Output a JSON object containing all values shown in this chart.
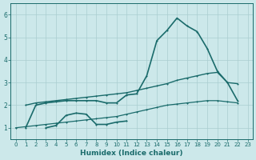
{
  "xlabel": "Humidex (Indice chaleur)",
  "xlim": [
    -0.5,
    23.5
  ],
  "ylim": [
    0.5,
    6.5
  ],
  "xticks": [
    0,
    1,
    2,
    3,
    4,
    5,
    6,
    7,
    8,
    9,
    10,
    11,
    12,
    13,
    14,
    15,
    16,
    17,
    18,
    19,
    20,
    21,
    22,
    23
  ],
  "yticks": [
    1,
    2,
    3,
    4,
    5,
    6
  ],
  "bg_color": "#cce8ea",
  "grid_color": "#aacdd0",
  "line_color": "#1a6b6b",
  "lines": [
    {
      "x": [
        1,
        2,
        3,
        4,
        5,
        6,
        7,
        8,
        9,
        10,
        11,
        12,
        13,
        14,
        15,
        16,
        17,
        18,
        19,
        20,
        21,
        22
      ],
      "y": [
        1.0,
        2.0,
        2.1,
        2.15,
        2.2,
        2.2,
        2.2,
        2.2,
        2.1,
        2.1,
        2.45,
        2.5,
        3.3,
        4.85,
        5.3,
        5.85,
        5.5,
        5.25,
        4.5,
        3.5,
        3.0,
        2.2
      ],
      "linewidth": 1.2,
      "markersize": 2.0
    },
    {
      "x": [
        3,
        4,
        5,
        6,
        7,
        8,
        9,
        10,
        11
      ],
      "y": [
        1.0,
        1.1,
        1.55,
        1.65,
        1.6,
        1.15,
        1.15,
        1.25,
        1.3
      ],
      "linewidth": 1.2,
      "markersize": 2.0
    },
    {
      "x": [
        1,
        2,
        3,
        4,
        5,
        6,
        7,
        8,
        9,
        10,
        11,
        12,
        13,
        14,
        15,
        16,
        17,
        18,
        19,
        20,
        21,
        22
      ],
      "y": [
        2.0,
        2.1,
        2.15,
        2.2,
        2.25,
        2.3,
        2.35,
        2.4,
        2.45,
        2.5,
        2.55,
        2.65,
        2.75,
        2.85,
        2.95,
        3.1,
        3.2,
        3.3,
        3.4,
        3.45,
        3.0,
        2.95
      ],
      "linewidth": 1.0,
      "markersize": 1.8
    },
    {
      "x": [
        0,
        1,
        2,
        3,
        4,
        5,
        6,
        7,
        8,
        9,
        10,
        11,
        12,
        13,
        14,
        15,
        16,
        17,
        18,
        19,
        20,
        21,
        22
      ],
      "y": [
        1.0,
        1.05,
        1.1,
        1.15,
        1.2,
        1.25,
        1.3,
        1.35,
        1.4,
        1.45,
        1.5,
        1.6,
        1.7,
        1.8,
        1.9,
        2.0,
        2.05,
        2.1,
        2.15,
        2.2,
        2.2,
        2.15,
        2.1
      ],
      "linewidth": 0.9,
      "markersize": 1.5
    }
  ]
}
